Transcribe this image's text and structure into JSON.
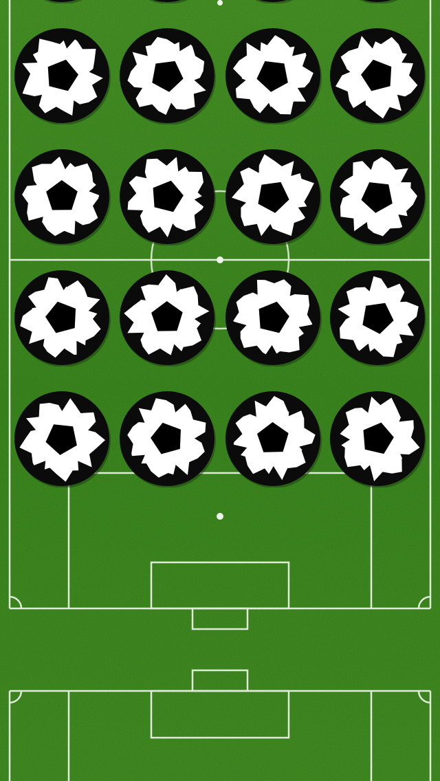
{
  "screen": {
    "background_color": "#3f8a22",
    "line_color": "#f2f6ee"
  },
  "pitch": {
    "description_icon": "soccer-pitch",
    "grass_dark": "#2f7418",
    "grass_light": "#4f9c2c"
  },
  "grid": {
    "rows": 4,
    "columns": 4,
    "partial_top_row": true,
    "tile_icon": "soccer-ball-icon",
    "tile_colors": {
      "shell": "#0b0b0b",
      "panel": "#ffffff",
      "pentagon": "#000000",
      "shadow": "#1e3f10"
    }
  }
}
